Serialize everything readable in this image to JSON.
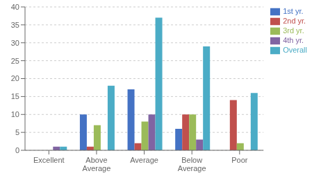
{
  "chart_data": {
    "type": "bar",
    "categories": [
      "Excellent",
      "Above\nAverage",
      "Average",
      "Below\nAverage",
      "Poor"
    ],
    "series": [
      {
        "name": "1st yr.",
        "color": "#4472C4",
        "values": [
          0,
          10,
          17,
          6,
          0
        ]
      },
      {
        "name": "2nd yr.",
        "color": "#C0504D",
        "values": [
          0,
          1,
          2,
          10,
          14
        ]
      },
      {
        "name": "3rd yr.",
        "color": "#9BBB59",
        "values": [
          0,
          7,
          8,
          10,
          2
        ]
      },
      {
        "name": "4th yr.",
        "color": "#8064A2",
        "values": [
          1,
          0,
          10,
          3,
          0
        ]
      },
      {
        "name": "Overall",
        "color": "#4BACC6",
        "values": [
          1,
          18,
          37,
          29,
          16
        ]
      }
    ],
    "ylim": [
      0,
      40
    ],
    "yticks": [
      0,
      5,
      10,
      15,
      20,
      25,
      30,
      35,
      40
    ],
    "grid": true,
    "legend": "upper right"
  }
}
